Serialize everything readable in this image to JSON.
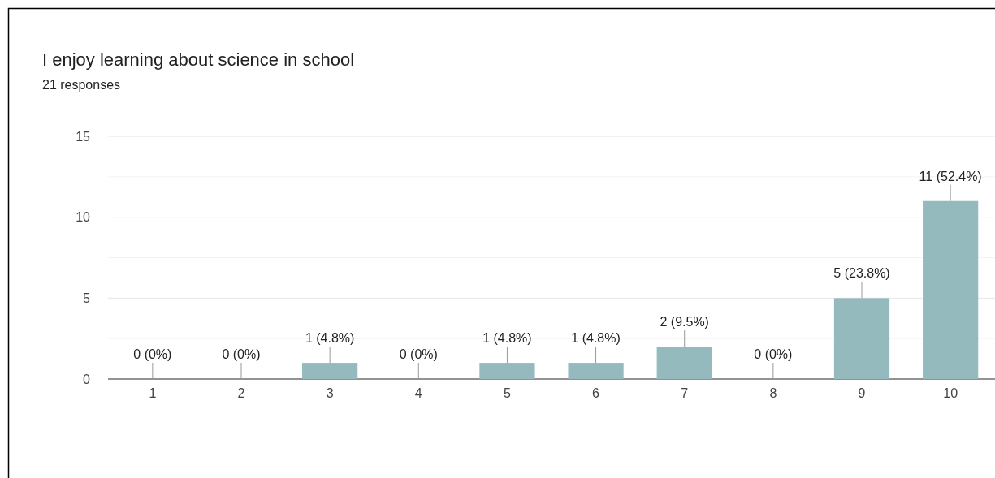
{
  "chart_data": {
    "type": "bar",
    "title": "I enjoy learning about science in school",
    "subtitle": "21 responses",
    "categories": [
      "1",
      "2",
      "3",
      "4",
      "5",
      "6",
      "7",
      "8",
      "9",
      "10"
    ],
    "values": [
      0,
      0,
      1,
      0,
      1,
      1,
      2,
      0,
      5,
      11
    ],
    "value_labels": [
      "0 (0%)",
      "0 (0%)",
      "1 (4.8%)",
      "0 (0%)",
      "1 (4.8%)",
      "1 (4.8%)",
      "2 (9.5%)",
      "0 (0%)",
      "5 (23.8%)",
      "11 (52.4%)"
    ],
    "color": "#95babd",
    "ylim": [
      0,
      15
    ],
    "yticks": [
      0,
      {
        "value": 2.5,
        "label": null
      },
      5,
      {
        "value": 7.5,
        "label": null
      },
      10,
      {
        "value": 12.5,
        "label": null
      },
      15
    ],
    "grid": "y"
  }
}
